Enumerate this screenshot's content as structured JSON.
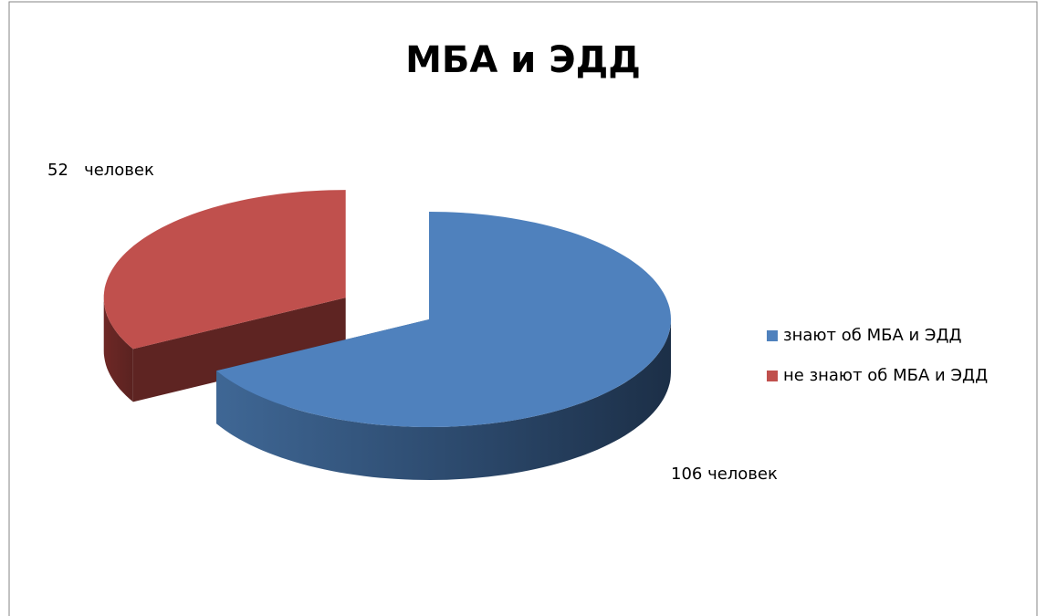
{
  "chart_data": {
    "type": "pie3d",
    "title": "МБА и ЭДД",
    "categories": [
      "знают об МБА и ЭДД",
      "не знают об МБА и ЭДД"
    ],
    "values": [
      106,
      52
    ],
    "value_labels": [
      "106 человек",
      "52   человек"
    ],
    "colors": [
      "#4f81bd",
      "#c0504d"
    ],
    "legend": "right"
  }
}
